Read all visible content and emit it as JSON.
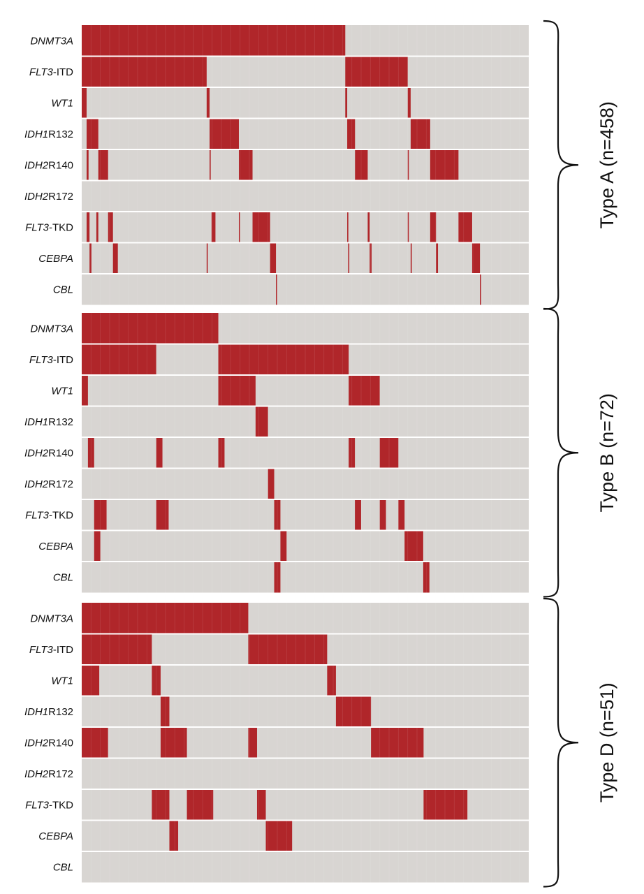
{
  "colors": {
    "mutated": "#b0262a",
    "background": "#d8d5d2",
    "separator": "#ffffff",
    "text": "#111111"
  },
  "chart_data": [
    {
      "type": "heatmap",
      "title": "Type A (n=458)",
      "n": 458,
      "genes": [
        {
          "italic": "DNMT3A",
          "suffix": ""
        },
        {
          "italic": "FLT3",
          "suffix": "-ITD"
        },
        {
          "italic": "WT1",
          "suffix": ""
        },
        {
          "italic": "IDH1",
          "suffix": "R132"
        },
        {
          "italic": "IDH2",
          "suffix": "R140"
        },
        {
          "italic": "IDH2",
          "suffix": "R172"
        },
        {
          "italic": "FLT3",
          "suffix": "-TKD"
        },
        {
          "italic": "CEBPA",
          "suffix": ""
        },
        {
          "italic": "CBL",
          "suffix": ""
        }
      ],
      "mutated_ranges": [
        [
          [
            0,
            270
          ]
        ],
        [
          [
            0,
            128
          ],
          [
            270,
            334
          ]
        ],
        [
          [
            0,
            5
          ],
          [
            128,
            131
          ],
          [
            270,
            272
          ],
          [
            334,
            337
          ]
        ],
        [
          [
            5,
            17
          ],
          [
            131,
            161
          ],
          [
            272,
            280
          ],
          [
            337,
            357
          ]
        ],
        [
          [
            5,
            7
          ],
          [
            17,
            27
          ],
          [
            131,
            132
          ],
          [
            161,
            175
          ],
          [
            280,
            293
          ],
          [
            334,
            335
          ],
          [
            357,
            386
          ]
        ],
        [],
        [
          [
            5,
            8
          ],
          [
            15,
            17
          ],
          [
            27,
            32
          ],
          [
            133,
            137
          ],
          [
            161,
            162
          ],
          [
            175,
            193
          ],
          [
            272,
            273
          ],
          [
            293,
            295
          ],
          [
            334,
            335
          ],
          [
            357,
            363
          ],
          [
            386,
            400
          ]
        ],
        [
          [
            8,
            10
          ],
          [
            32,
            37
          ],
          [
            128,
            129
          ],
          [
            193,
            199
          ],
          [
            273,
            274
          ],
          [
            295,
            297
          ],
          [
            337,
            338
          ],
          [
            363,
            365
          ],
          [
            400,
            408
          ]
        ],
        [
          [
            199,
            200
          ],
          [
            408,
            409
          ]
        ]
      ]
    },
    {
      "type": "heatmap",
      "title": "Type B (n=72)",
      "n": 72,
      "genes": [
        {
          "italic": "DNMT3A",
          "suffix": ""
        },
        {
          "italic": "FLT3",
          "suffix": "-ITD"
        },
        {
          "italic": "WT1",
          "suffix": ""
        },
        {
          "italic": "IDH1",
          "suffix": "R132"
        },
        {
          "italic": "IDH2",
          "suffix": "R140"
        },
        {
          "italic": "IDH2",
          "suffix": "R172"
        },
        {
          "italic": "FLT3",
          "suffix": "-TKD"
        },
        {
          "italic": "CEBPA",
          "suffix": ""
        },
        {
          "italic": "CBL",
          "suffix": ""
        }
      ],
      "mutated_ranges": [
        [
          [
            0,
            22
          ]
        ],
        [
          [
            0,
            12
          ],
          [
            22,
            43
          ]
        ],
        [
          [
            0,
            1
          ],
          [
            22,
            28
          ],
          [
            43,
            48
          ]
        ],
        [
          [
            28,
            30
          ]
        ],
        [
          [
            1,
            2
          ],
          [
            12,
            13
          ],
          [
            22,
            23
          ],
          [
            43,
            44
          ],
          [
            48,
            51
          ]
        ],
        [
          [
            30,
            31
          ]
        ],
        [
          [
            2,
            4
          ],
          [
            12,
            14
          ],
          [
            31,
            32
          ],
          [
            44,
            45
          ],
          [
            48,
            49
          ],
          [
            51,
            52
          ]
        ],
        [
          [
            2,
            3
          ],
          [
            32,
            33
          ],
          [
            52,
            55
          ]
        ],
        [
          [
            31,
            32
          ],
          [
            55,
            56
          ]
        ]
      ]
    },
    {
      "type": "heatmap",
      "title": "Type D (n=51)",
      "n": 51,
      "genes": [
        {
          "italic": "DNMT3A",
          "suffix": ""
        },
        {
          "italic": "FLT3",
          "suffix": "-ITD"
        },
        {
          "italic": "WT1",
          "suffix": ""
        },
        {
          "italic": "IDH1",
          "suffix": "R132"
        },
        {
          "italic": "IDH2",
          "suffix": "R140"
        },
        {
          "italic": "IDH2",
          "suffix": "R172"
        },
        {
          "italic": "FLT3",
          "suffix": "-TKD"
        },
        {
          "italic": "CEBPA",
          "suffix": ""
        },
        {
          "italic": "CBL",
          "suffix": ""
        }
      ],
      "mutated_ranges": [
        [
          [
            0,
            19
          ]
        ],
        [
          [
            0,
            8
          ],
          [
            19,
            28
          ]
        ],
        [
          [
            0,
            2
          ],
          [
            8,
            9
          ],
          [
            28,
            29
          ]
        ],
        [
          [
            9,
            10
          ],
          [
            29,
            33
          ]
        ],
        [
          [
            0,
            3
          ],
          [
            9,
            12
          ],
          [
            19,
            20
          ],
          [
            33,
            39
          ]
        ],
        [],
        [
          [
            8,
            10
          ],
          [
            12,
            15
          ],
          [
            20,
            21
          ],
          [
            39,
            44
          ]
        ],
        [
          [
            10,
            11
          ],
          [
            21,
            24
          ]
        ],
        []
      ]
    }
  ]
}
